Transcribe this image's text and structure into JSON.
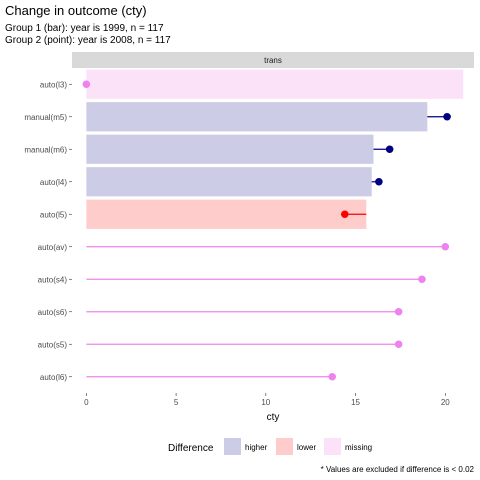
{
  "chart_data": {
    "type": "bar",
    "title": "Change in outcome (cty)",
    "subtitles": [
      "Group 1 (bar): year is 1999, n = 117",
      "Group 2 (point): year is 2008, n = 117"
    ],
    "facet_label": "trans",
    "xlabel": "cty",
    "xlim": [
      -0.8,
      21.6
    ],
    "xticks": [
      0,
      5,
      10,
      15,
      20
    ],
    "categories": [
      "auto(l3)",
      "manual(m5)",
      "manual(m6)",
      "auto(l4)",
      "auto(l5)",
      "auto(av)",
      "auto(s4)",
      "auto(s6)",
      "auto(s5)",
      "auto(l6)"
    ],
    "series": [
      {
        "name": "Group 1 (bar): year is 1999",
        "values": [
          21,
          19,
          16,
          15.9,
          15.6,
          null,
          null,
          null,
          null,
          null
        ]
      },
      {
        "name": "Group 2 (point): year is 2008",
        "values": [
          0,
          20.1,
          16.9,
          16.3,
          14.4,
          20,
          18.7,
          17.4,
          17.4,
          13.7
        ]
      }
    ],
    "difference": [
      "missing",
      "higher",
      "higher",
      "higher",
      "lower",
      "missing",
      "missing",
      "missing",
      "missing",
      "missing"
    ],
    "legend": {
      "title": "Difference",
      "position": "bottom",
      "entries": [
        {
          "key": "higher",
          "label": "higher"
        },
        {
          "key": "lower",
          "label": "lower"
        },
        {
          "key": "missing",
          "label": "missing"
        }
      ]
    },
    "colors": {
      "higher_fill": "#cccce6",
      "higher_point": "#000080",
      "lower_fill": "#ffcccc",
      "lower_point": "#ff0000",
      "missing_fill": "#fbe2f8",
      "missing_point": "#ee82ee",
      "strip": "#d9d9d9"
    },
    "grid": false,
    "caption": "* Values are excluded if difference is < 0.02"
  }
}
